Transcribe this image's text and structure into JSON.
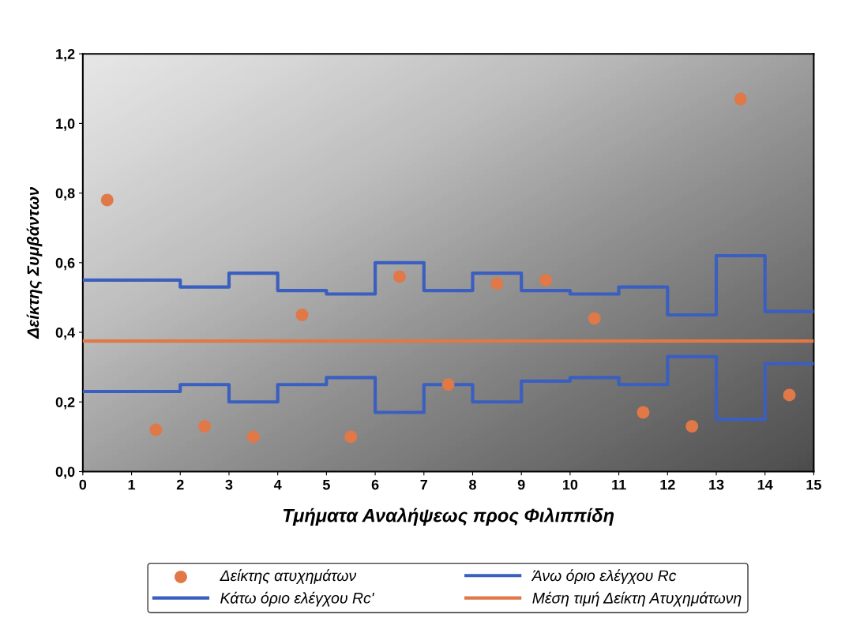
{
  "chart_data": {
    "type": "scatter",
    "xlabel": "Τμήματα Αναλήψεως προς Φιλιππίδη",
    "ylabel": "Δείκτης Συμβάντων",
    "xlim": [
      0,
      15
    ],
    "xticks": [
      0,
      1,
      2,
      3,
      4,
      5,
      6,
      7,
      8,
      9,
      10,
      11,
      12,
      13,
      14,
      15
    ],
    "ylim": [
      0,
      1.2
    ],
    "yticks": [
      {
        "value": 0,
        "label": "0,0"
      },
      {
        "value": 0.2,
        "label": "0,2"
      },
      {
        "value": 0.4,
        "label": "0,4"
      },
      {
        "value": 0.6,
        "label": "0,6"
      },
      {
        "value": 0.8,
        "label": "0,8"
      },
      {
        "value": 1.0,
        "label": "1,0"
      },
      {
        "value": 1.2,
        "label": "1,2"
      }
    ],
    "grid": false,
    "legend": "bottom",
    "series": [
      {
        "name": "Δείκτης ατυχημάτων",
        "marker": "circle",
        "color": "#e07848",
        "x": [
          0.5,
          1.5,
          2.5,
          3.5,
          4.5,
          5.5,
          6.5,
          7.5,
          8.5,
          9.5,
          10.5,
          11.5,
          12.5,
          13.5,
          14.5
        ],
        "values": [
          0.78,
          0.12,
          0.13,
          0.1,
          0.45,
          0.1,
          0.56,
          0.25,
          0.54,
          0.55,
          0.44,
          0.17,
          0.13,
          1.07,
          0.22
        ]
      },
      {
        "name": "Άνω όριο ελέγχου Rc",
        "type": "step",
        "color": "#3a5fc0",
        "x": [
          0,
          1,
          2,
          3,
          4,
          5,
          6,
          7,
          8,
          9,
          10,
          11,
          12,
          13,
          14,
          15
        ],
        "values": [
          0.55,
          0.55,
          0.53,
          0.57,
          0.52,
          0.51,
          0.6,
          0.52,
          0.57,
          0.52,
          0.51,
          0.53,
          0.45,
          0.62,
          0.46,
          0.46
        ]
      },
      {
        "name": "Κάτω όριο ελέγχου Rc'",
        "type": "step",
        "color": "#3a5fc0",
        "x": [
          0,
          1,
          2,
          3,
          4,
          5,
          6,
          7,
          8,
          9,
          10,
          11,
          12,
          13,
          14,
          15
        ],
        "values": [
          0.23,
          0.23,
          0.25,
          0.2,
          0.25,
          0.27,
          0.17,
          0.25,
          0.2,
          0.26,
          0.27,
          0.25,
          0.33,
          0.15,
          0.31,
          0.31
        ]
      },
      {
        "name": "Μέση τιμή Δείκτη Ατυχημάτωνη",
        "type": "line",
        "color": "#e07848",
        "x": [
          0,
          15
        ],
        "values": [
          0.375,
          0.375
        ]
      }
    ]
  }
}
